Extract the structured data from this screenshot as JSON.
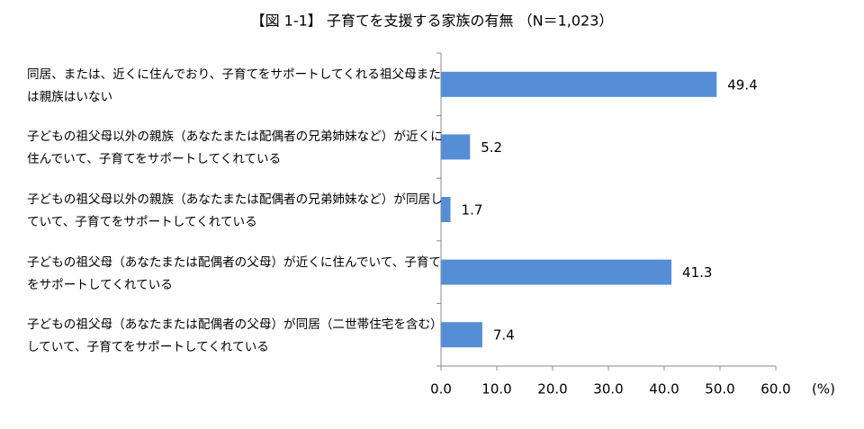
{
  "chart_data": {
    "type": "bar",
    "orientation": "horizontal",
    "title": "【図 1-1】 子育てを支援する家族の有無 （N＝1,023）",
    "categories": [
      "同居、または、近くに住んでおり、子育てをサポートしてくれる祖父母または親族はいない",
      "子どもの祖父母以外の親族（あなたまたは配偶者の兄弟姉妹など）が近くに住んでいて、子育てをサポートしてくれている",
      "子どもの祖父母以外の親族（あなたまたは配偶者の兄弟姉妹など）が同居していて、子育てをサポートしてくれている",
      "子どもの祖父母（あなたまたは配偶者の父母）が近くに住んでいて、子育てをサポートしてくれている",
      "子どもの祖父母（あなたまたは配偶者の父母）が同居（二世帯住宅を含む）していて、子育てをサポートしてくれている"
    ],
    "values": [
      49.4,
      5.2,
      1.7,
      41.3,
      7.4
    ],
    "color": "#558ed5",
    "xlim": [
      0,
      60
    ],
    "xticks": [
      {
        "value": 0,
        "label": "0.0"
      },
      {
        "value": 10,
        "label": "10.0"
      },
      {
        "value": 20,
        "label": "20.0"
      },
      {
        "value": 30,
        "label": "30.0"
      },
      {
        "value": 40,
        "label": "40.0"
      },
      {
        "value": 50,
        "label": "50.0"
      },
      {
        "value": 60,
        "label": "60.0"
      }
    ],
    "x_label": "(%)"
  }
}
